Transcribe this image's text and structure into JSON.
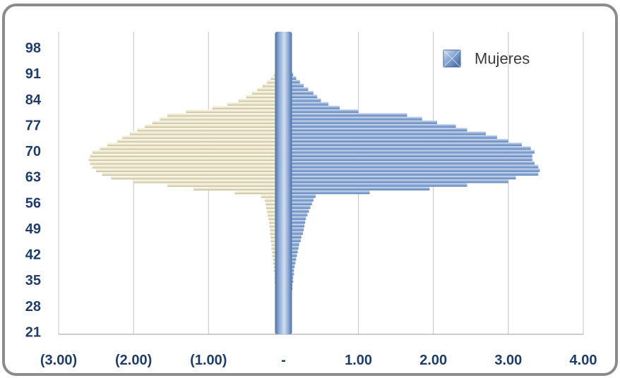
{
  "chart_data": {
    "type": "bar",
    "orientation": "horizontal",
    "categories": [
      21,
      22,
      23,
      24,
      25,
      26,
      27,
      28,
      29,
      30,
      31,
      32,
      33,
      34,
      35,
      36,
      37,
      38,
      39,
      40,
      41,
      42,
      43,
      44,
      45,
      46,
      47,
      48,
      49,
      50,
      51,
      52,
      53,
      54,
      55,
      56,
      57,
      58,
      59,
      60,
      61,
      62,
      63,
      64,
      65,
      66,
      67,
      68,
      69,
      70,
      71,
      72,
      73,
      74,
      75,
      76,
      77,
      78,
      79,
      80,
      81,
      82,
      83,
      84,
      85,
      86,
      87,
      88,
      89,
      90,
      91,
      92,
      93,
      94,
      95,
      96,
      97,
      98,
      99,
      100,
      101,
      102
    ],
    "series": [
      {
        "name": "Mujeres",
        "color": "#8fabd6",
        "values": [
          0.1,
          0.1,
          0.1,
          0.1,
          0.1,
          0.1,
          0.1,
          0.1,
          0.1,
          0.1,
          0.11,
          0.11,
          0.12,
          0.12,
          0.13,
          0.13,
          0.14,
          0.14,
          0.15,
          0.16,
          0.17,
          0.18,
          0.19,
          0.2,
          0.21,
          0.23,
          0.24,
          0.26,
          0.27,
          0.28,
          0.29,
          0.3,
          0.32,
          0.34,
          0.36,
          0.38,
          0.4,
          0.43,
          1.15,
          1.95,
          2.45,
          3.0,
          3.1,
          3.4,
          3.42,
          3.4,
          3.35,
          3.32,
          3.32,
          3.35,
          3.3,
          3.18,
          3.0,
          2.85,
          2.7,
          2.45,
          2.3,
          2.05,
          1.85,
          1.65,
          1.0,
          0.75,
          0.6,
          0.5,
          0.45,
          0.4,
          0.33,
          0.27,
          0.22,
          0.17,
          0.13,
          0.11,
          0.1,
          0.1,
          0.1,
          0.1,
          0.1,
          0.1,
          0.1,
          0.1,
          0.1,
          0.1
        ]
      },
      {
        "color": "#efe9cf",
        "values": [
          -0.1,
          -0.1,
          -0.1,
          -0.1,
          -0.1,
          -0.1,
          -0.1,
          -0.1,
          -0.1,
          -0.1,
          -0.1,
          -0.1,
          -0.11,
          -0.11,
          -0.12,
          -0.12,
          -0.12,
          -0.13,
          -0.13,
          -0.14,
          -0.14,
          -0.15,
          -0.15,
          -0.16,
          -0.16,
          -0.17,
          -0.17,
          -0.18,
          -0.18,
          -0.19,
          -0.19,
          -0.2,
          -0.21,
          -0.22,
          -0.23,
          -0.24,
          -0.25,
          -0.3,
          -0.65,
          -1.2,
          -1.55,
          -2.0,
          -2.3,
          -2.42,
          -2.5,
          -2.55,
          -2.58,
          -2.6,
          -2.58,
          -2.55,
          -2.45,
          -2.35,
          -2.22,
          -2.15,
          -2.05,
          -1.95,
          -1.85,
          -1.75,
          -1.65,
          -1.55,
          -1.3,
          -0.95,
          -0.75,
          -0.6,
          -0.5,
          -0.42,
          -0.35,
          -0.28,
          -0.22,
          -0.17,
          -0.13,
          -0.11,
          -0.1,
          -0.1,
          -0.1,
          -0.1,
          -0.1,
          -0.1,
          -0.1,
          -0.1,
          -0.1,
          -0.1
        ]
      }
    ],
    "x_ticks": [
      -3,
      -2,
      -1,
      0,
      1,
      2,
      3,
      4
    ],
    "x_tick_labels": [
      "(3.00)",
      "(2.00)",
      "(1.00)",
      "-",
      "1.00",
      "2.00",
      "3.00",
      "4.00"
    ],
    "xlim": [
      -3,
      4
    ],
    "grid": {
      "vertical": true,
      "horizontal": false
    },
    "legend_position": "top-right"
  }
}
